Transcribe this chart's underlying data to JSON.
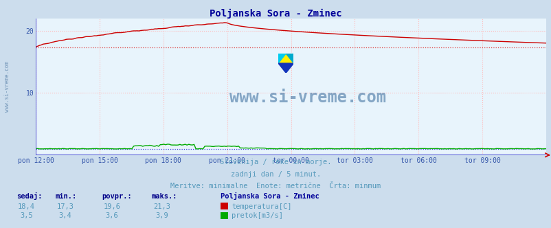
{
  "title": "Poljanska Sora - Zminec",
  "title_color": "#000099",
  "bg_color": "#ccdded",
  "plot_bg_color": "#e8f4fc",
  "grid_color_h": "#ffbbbb",
  "grid_color_v": "#ffbbbb",
  "axis_color": "#3333cc",
  "xlabel_color": "#3355aa",
  "x_ticks": [
    "pon 12:00",
    "pon 15:00",
    "pon 18:00",
    "pon 21:00",
    "tor 00:00",
    "tor 03:00",
    "tor 06:00",
    "tor 09:00"
  ],
  "x_tick_positions": [
    0.0,
    0.125,
    0.25,
    0.375,
    0.5,
    0.625,
    0.75,
    0.875
  ],
  "y_ticks": [
    10,
    20
  ],
  "ylim": [
    0,
    22
  ],
  "subtitle1": "Slovenija / reke in morje.",
  "subtitle2": "zadnji dan / 5 minut.",
  "subtitle3": "Meritve: minimalne  Enote: metrične  Črta: minmum",
  "subtitle_color": "#5599bb",
  "watermark": "www.si-vreme.com",
  "watermark_color": "#336699",
  "temp_color": "#cc0000",
  "flow_color": "#00aa00",
  "min_line_color": "#dd3333",
  "flow_line_color": "#0000cc",
  "legend_title": "Poljanska Sora - Zminec",
  "legend_title_color": "#000099",
  "legend_color": "#5599bb",
  "table_header": [
    "sedaj:",
    "min.:",
    "povpr.:",
    "maks.:"
  ],
  "table_header_color": "#000088",
  "table_temp": [
    "18,4",
    "17,3",
    "19,6",
    "21,3"
  ],
  "table_flow": [
    "3,5",
    "3,4",
    "3,6",
    "3,9"
  ],
  "label_temp": "temperatura[C]",
  "label_flow": "pretok[m3/s]",
  "sidebar_text": "www.si-vreme.com"
}
